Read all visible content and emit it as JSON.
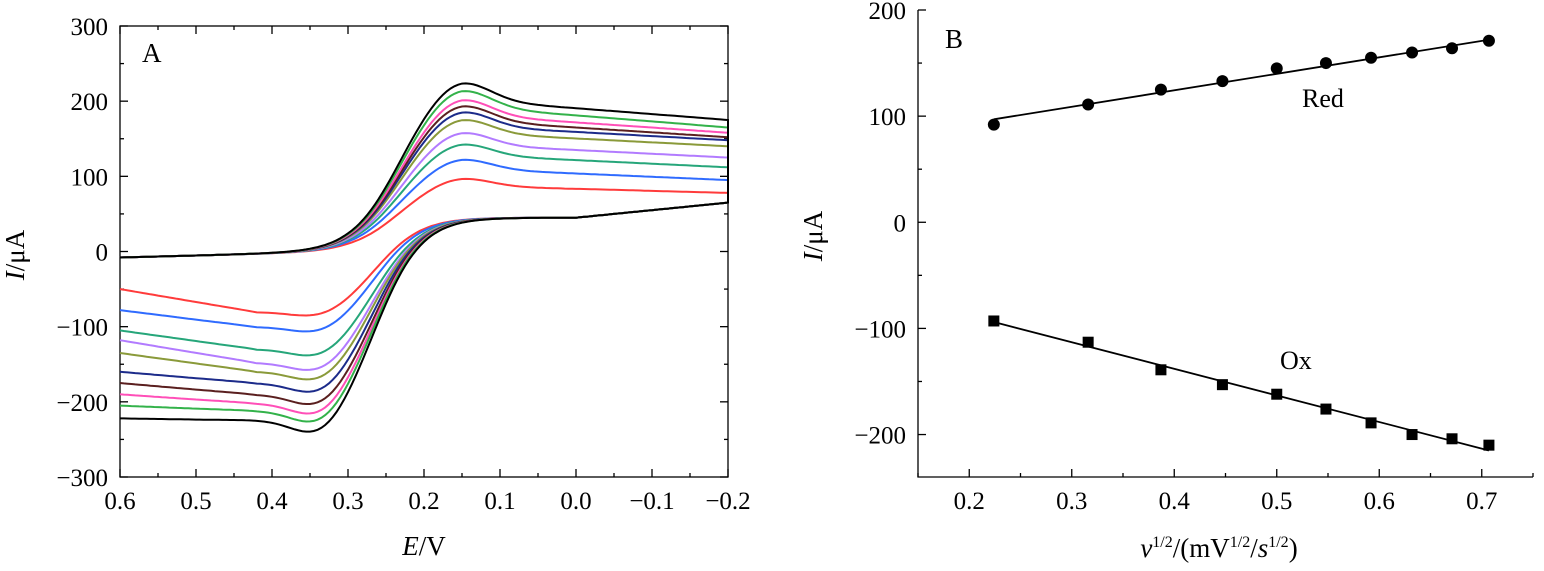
{
  "chart_data": [
    {
      "panel": "A",
      "type": "line",
      "xlabel": {
        "italic": "E",
        "rest": "/V"
      },
      "ylabel": {
        "italic": "I",
        "rest": "/μA"
      },
      "xlim": [
        0.6,
        -0.2
      ],
      "ylim": [
        -300,
        300
      ],
      "x_ticks": [
        "0.6",
        "0.5",
        "0.4",
        "0.3",
        "0.2",
        "0.1",
        "0.0",
        "−0.1",
        "−0.2"
      ],
      "x_tick_values": [
        0.6,
        0.5,
        0.4,
        0.3,
        0.2,
        0.1,
        0.0,
        -0.1,
        -0.2
      ],
      "y_ticks": [
        "−300",
        "−200",
        "−100",
        "0",
        "100",
        "200",
        "300"
      ],
      "y_tick_values": [
        -300,
        -200,
        -100,
        0,
        100,
        200,
        300
      ],
      "series": [
        {
          "color": "#ff3b3b",
          "ipc": 95,
          "ipa": -90,
          "cath_plateau": 78,
          "anod_start": -50
        },
        {
          "color": "#2f6bff",
          "ipc": 120,
          "ipa": -112,
          "cath_plateau": 95,
          "anod_start": -78
        },
        {
          "color": "#26a67a",
          "ipc": 140,
          "ipa": -145,
          "cath_plateau": 112,
          "anod_start": -105
        },
        {
          "color": "#b27bff",
          "ipc": 155,
          "ipa": -165,
          "cath_plateau": 125,
          "anod_start": -118
        },
        {
          "color": "#8a9a3a",
          "ipc": 172,
          "ipa": -178,
          "cath_plateau": 140,
          "anod_start": -135
        },
        {
          "color": "#1c2b8a",
          "ipc": 182,
          "ipa": -195,
          "cath_plateau": 148,
          "anod_start": -160
        },
        {
          "color": "#5a1f1f",
          "ipc": 190,
          "ipa": -212,
          "cath_plateau": 152,
          "anod_start": -175
        },
        {
          "color": "#ff4fb8",
          "ipc": 198,
          "ipa": -225,
          "cath_plateau": 158,
          "anod_start": -190
        },
        {
          "color": "#33b24a",
          "ipc": 210,
          "ipa": -236,
          "cath_plateau": 165,
          "anod_start": -205
        },
        {
          "color": "#000000",
          "ipc": 220,
          "ipa": -250,
          "cath_plateau": 175,
          "anod_start": -222
        }
      ]
    },
    {
      "panel": "B",
      "type": "scatter",
      "xlabel": {
        "v": "v",
        "sup1": "1/2",
        "mid": "/(mV",
        "sup2": "1/2",
        "slash": "/",
        "s": "s",
        "sup3": "1/2",
        "close": ")"
      },
      "ylabel": {
        "italic": "I",
        "rest": "/μA"
      },
      "xlim": [
        0.15,
        0.75
      ],
      "ylim": [
        -240,
        200
      ],
      "x_ticks": [
        "0.2",
        "0.3",
        "0.4",
        "0.5",
        "0.6",
        "0.7"
      ],
      "x_tick_values": [
        0.2,
        0.3,
        0.4,
        0.5,
        0.6,
        0.7
      ],
      "y_ticks": [
        "−200",
        "−100",
        "0",
        "100",
        "200"
      ],
      "y_tick_values": [
        -200,
        -100,
        0,
        100,
        200
      ],
      "series": [
        {
          "name": "Red",
          "marker": "circle",
          "x": [
            0.224,
            0.316,
            0.387,
            0.447,
            0.5,
            0.548,
            0.592,
            0.632,
            0.671,
            0.707
          ],
          "y": [
            92,
            111,
            125,
            133,
            145,
            150,
            155,
            160,
            164,
            171
          ],
          "fit": [
            [
              0.224,
              97
            ],
            [
              0.707,
              172
            ]
          ]
        },
        {
          "name": "Ox",
          "marker": "square",
          "x": [
            0.224,
            0.316,
            0.387,
            0.447,
            0.5,
            0.548,
            0.592,
            0.632,
            0.671,
            0.707
          ],
          "y": [
            -93,
            -113,
            -139,
            -153,
            -162,
            -176,
            -189,
            -200,
            -204,
            -210
          ],
          "fit": [
            [
              0.224,
              -94
            ],
            [
              0.707,
              -215
            ]
          ]
        }
      ]
    }
  ]
}
